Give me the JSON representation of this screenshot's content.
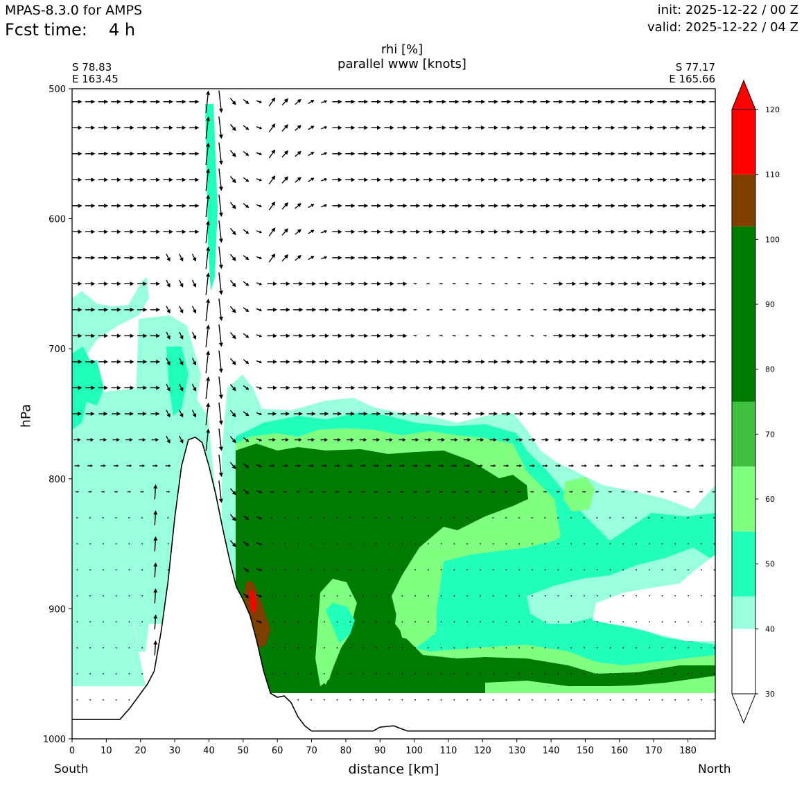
{
  "header": {
    "model": "MPAS-8.3.0 for AMPS",
    "fcst_label": "Fcst time:",
    "fcst_value": "4 h",
    "init": "init: 2025-12-22 / 00 Z",
    "valid": "valid: 2025-12-22 / 04 Z"
  },
  "section": {
    "start_lat": "S 78.83",
    "start_lon": "E 163.45",
    "end_lat": "S 77.17",
    "end_lon": "E 165.66",
    "left_end": "South",
    "right_end": "North"
  },
  "chart_data": {
    "type": "heatmap",
    "title": "rhi [%]",
    "subtitle": "parallel www [knots]",
    "xlabel": "distance [km]",
    "ylabel": "hPa",
    "xlim": [
      0,
      188
    ],
    "ylim": [
      1000,
      500
    ],
    "xticks": [
      "0",
      "10",
      "20",
      "30",
      "40",
      "50",
      "60",
      "70",
      "80",
      "90",
      "100",
      "110",
      "120",
      "130",
      "140",
      "150",
      "160",
      "170",
      "180"
    ],
    "yticks": [
      "500",
      "600",
      "700",
      "800",
      "900",
      "1000"
    ],
    "colorbar": {
      "levels": [
        30,
        40,
        50,
        60,
        70,
        80,
        90,
        100,
        110,
        120
      ],
      "tick_labels": [
        "30",
        "40",
        "50",
        "60",
        "70",
        "80",
        "90",
        "100",
        "110",
        "120"
      ],
      "colors": [
        "#ffffff",
        "#99ffdd",
        "#22ffbb",
        "#80ff80",
        "#40c040",
        "#007a00",
        "#007a00",
        "#7f3f00",
        "#ff0000"
      ],
      "bands": [
        [
          30,
          40
        ],
        [
          40,
          45
        ],
        [
          45,
          55
        ],
        [
          55,
          65
        ],
        [
          65,
          75
        ],
        [
          75,
          90
        ],
        [
          90,
          102
        ],
        [
          102,
          110
        ],
        [
          110,
          120
        ]
      ],
      "extend": "both"
    },
    "terrain": [
      [
        0,
        985
      ],
      [
        14,
        985
      ],
      [
        17,
        976
      ],
      [
        22,
        958
      ],
      [
        24,
        948
      ],
      [
        26,
        918
      ],
      [
        28,
        880
      ],
      [
        30,
        830
      ],
      [
        32,
        790
      ],
      [
        34,
        770
      ],
      [
        36,
        768
      ],
      [
        38,
        772
      ],
      [
        40,
        790
      ],
      [
        42,
        812
      ],
      [
        44,
        838
      ],
      [
        46,
        862
      ],
      [
        48,
        883
      ],
      [
        50,
        893
      ],
      [
        52,
        905
      ],
      [
        54,
        925
      ],
      [
        56,
        948
      ],
      [
        58,
        965
      ],
      [
        60,
        968
      ],
      [
        62,
        967
      ],
      [
        64,
        972
      ],
      [
        66,
        983
      ],
      [
        68,
        990
      ],
      [
        70,
        994
      ],
      [
        88,
        994
      ],
      [
        90,
        991
      ],
      [
        94,
        990
      ],
      [
        98,
        994
      ],
      [
        188,
        994
      ]
    ]
  }
}
